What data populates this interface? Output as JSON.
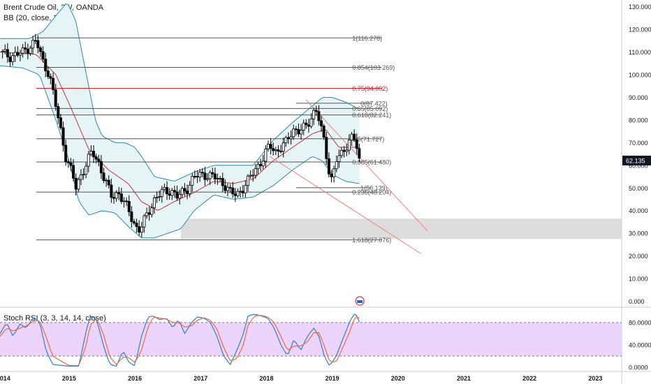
{
  "header": {
    "title": "Brent Crude Oil, 2W, OANDA",
    "indicator": "BB (20, close, 2)",
    "rsi_label": "Stoch RSI (3, 3, 14, 14, close)"
  },
  "colors": {
    "up": "#000000",
    "down": "#000000",
    "basis": "#c0343a",
    "band": "#2a8ba6",
    "band_fill": "#e6f4f5",
    "fib_line": "#555555",
    "fib_75": "#e31b23",
    "trend": "#f08080",
    "zone": "#d9d9d9",
    "k_line": "#2f7fd6",
    "d_line": "#f06a3e",
    "rsi_bg": "#e9ccfb",
    "price_tag": "#131722"
  },
  "chart_data": [
    {
      "type": "candlestick",
      "title": "Brent Crude Oil, 2W, OANDA",
      "ylim": [
        -2,
        133
      ],
      "yticks": [
        0,
        10,
        20,
        30,
        40,
        50,
        60,
        70,
        80,
        90,
        100,
        110,
        120,
        130
      ],
      "ytick_labels": [
        "0.000",
        "10.000",
        "20.000",
        "30.000",
        "40.000",
        "50.000",
        "60.000",
        "70.000",
        "80.000",
        "90.000",
        "100.000",
        "110.000",
        "120.000",
        "130.000"
      ],
      "x_axis_labels": [
        {
          "label": "2014",
          "t": 2014.0
        },
        {
          "label": "2015",
          "t": 2015.0
        },
        {
          "label": "2016",
          "t": 2016.0
        },
        {
          "label": "2017",
          "t": 2017.0
        },
        {
          "label": "2018",
          "t": 2018.0
        },
        {
          "label": "2019",
          "t": 2019.0
        },
        {
          "label": "2020",
          "t": 2020.0
        },
        {
          "label": "2021",
          "t": 2021.0
        },
        {
          "label": "2022",
          "t": 2022.0
        },
        {
          "label": "2023",
          "t": 2023.0
        }
      ],
      "xlim": [
        2013.95,
        2023.4
      ],
      "last_price": "62.135",
      "close_anchors": [
        [
          2013.95,
          110
        ],
        [
          2014.1,
          108
        ],
        [
          2014.3,
          110
        ],
        [
          2014.5,
          115
        ],
        [
          2014.6,
          106
        ],
        [
          2014.7,
          100
        ],
        [
          2014.8,
          86
        ],
        [
          2014.95,
          64
        ],
        [
          2015.05,
          56
        ],
        [
          2015.1,
          50
        ],
        [
          2015.2,
          57
        ],
        [
          2015.35,
          66
        ],
        [
          2015.45,
          61
        ],
        [
          2015.55,
          53
        ],
        [
          2015.65,
          46
        ],
        [
          2015.75,
          48
        ],
        [
          2015.85,
          43
        ],
        [
          2015.95,
          37
        ],
        [
          2016.05,
          31
        ],
        [
          2016.1,
          33
        ],
        [
          2016.2,
          39
        ],
        [
          2016.3,
          45
        ],
        [
          2016.4,
          48
        ],
        [
          2016.55,
          49
        ],
        [
          2016.65,
          46
        ],
        [
          2016.8,
          50
        ],
        [
          2016.9,
          55
        ],
        [
          2017.05,
          56
        ],
        [
          2017.2,
          55
        ],
        [
          2017.35,
          52
        ],
        [
          2017.45,
          48
        ],
        [
          2017.55,
          47
        ],
        [
          2017.7,
          52
        ],
        [
          2017.8,
          57
        ],
        [
          2017.95,
          63
        ],
        [
          2018.05,
          69
        ],
        [
          2018.15,
          66
        ],
        [
          2018.3,
          70
        ],
        [
          2018.4,
          76
        ],
        [
          2018.5,
          75
        ],
        [
          2018.6,
          77
        ],
        [
          2018.75,
          85
        ],
        [
          2018.8,
          80
        ],
        [
          2018.88,
          70
        ],
        [
          2018.95,
          58
        ],
        [
          2019.0,
          53
        ],
        [
          2019.05,
          62
        ],
        [
          2019.15,
          65
        ],
        [
          2019.25,
          71
        ],
        [
          2019.32,
          73
        ],
        [
          2019.38,
          67
        ],
        [
          2019.42,
          62.135
        ]
      ],
      "basis_anchors": [
        [
          2013.95,
          110
        ],
        [
          2014.5,
          109
        ],
        [
          2014.8,
          100
        ],
        [
          2015.05,
          84
        ],
        [
          2015.3,
          67
        ],
        [
          2015.6,
          58
        ],
        [
          2015.9,
          52
        ],
        [
          2016.1,
          44
        ],
        [
          2016.35,
          40
        ],
        [
          2016.6,
          44
        ],
        [
          2016.9,
          48
        ],
        [
          2017.2,
          53
        ],
        [
          2017.5,
          52
        ],
        [
          2017.8,
          54
        ],
        [
          2018.1,
          62
        ],
        [
          2018.4,
          68
        ],
        [
          2018.7,
          74
        ],
        [
          2018.9,
          76
        ],
        [
          2019.1,
          68
        ],
        [
          2019.35,
          68
        ]
      ],
      "upper_anchors": [
        [
          2013.95,
          116
        ],
        [
          2014.4,
          116
        ],
        [
          2014.6,
          119
        ],
        [
          2014.8,
          126
        ],
        [
          2014.97,
          132
        ],
        [
          2015.1,
          124
        ],
        [
          2015.25,
          102
        ],
        [
          2015.4,
          80
        ],
        [
          2015.5,
          73
        ],
        [
          2015.7,
          70
        ],
        [
          2015.85,
          70
        ],
        [
          2016.0,
          68
        ],
        [
          2016.1,
          64
        ],
        [
          2016.3,
          55
        ],
        [
          2016.6,
          53
        ],
        [
          2016.9,
          57
        ],
        [
          2017.2,
          60
        ],
        [
          2017.5,
          60
        ],
        [
          2017.8,
          60
        ],
        [
          2018.1,
          71
        ],
        [
          2018.4,
          79
        ],
        [
          2018.65,
          85
        ],
        [
          2018.85,
          90
        ],
        [
          2019.0,
          90
        ],
        [
          2019.2,
          88
        ],
        [
          2019.4,
          85
        ]
      ],
      "lower_anchors": [
        [
          2013.95,
          104
        ],
        [
          2014.3,
          103
        ],
        [
          2014.55,
          100
        ],
        [
          2014.8,
          80
        ],
        [
          2015.0,
          62
        ],
        [
          2015.15,
          44
        ],
        [
          2015.3,
          38
        ],
        [
          2015.5,
          40
        ],
        [
          2015.7,
          39
        ],
        [
          2015.9,
          33
        ],
        [
          2016.1,
          28
        ],
        [
          2016.3,
          28
        ],
        [
          2016.5,
          30
        ],
        [
          2016.7,
          32
        ],
        [
          2016.9,
          40
        ],
        [
          2017.2,
          47
        ],
        [
          2017.5,
          45
        ],
        [
          2017.8,
          46
        ],
        [
          2018.1,
          51
        ],
        [
          2018.4,
          58
        ],
        [
          2018.7,
          64
        ],
        [
          2018.85,
          62
        ],
        [
          2019.0,
          56
        ],
        [
          2019.2,
          53
        ],
        [
          2019.4,
          52
        ]
      ],
      "fib_levels": [
        {
          "ratio_label": "1(116.278)",
          "price": 116.278,
          "from": 2014.5,
          "to": 2019.75,
          "style": "normal"
        },
        {
          "ratio_label": "0.854(103.269)",
          "price": 103.269,
          "from": 2014.5,
          "to": 2019.75,
          "style": "normal"
        },
        {
          "ratio_label": "0.75(94.002)",
          "price": 94.002,
          "from": 2014.5,
          "to": 2019.75,
          "style": "red"
        },
        {
          "ratio_label": "0.65(85.092)",
          "price": 85.092,
          "from": 2014.5,
          "to": 2019.75,
          "style": "normal"
        },
        {
          "ratio_label": "0.618(82.241)",
          "price": 82.241,
          "from": 2014.5,
          "to": 2019.75,
          "style": "normal"
        },
        {
          "ratio_label": "0.5(71.727)",
          "price": 71.727,
          "from": 2014.5,
          "to": 2019.75,
          "style": "normal"
        },
        {
          "ratio_label": "0.385(61.480)",
          "price": 61.48,
          "from": 2014.5,
          "to": 2019.75,
          "style": "normal"
        },
        {
          "ratio_label": "0.236(48.204)",
          "price": 48.204,
          "from": 2014.5,
          "to": 2019.75,
          "style": "normal"
        },
        {
          "ratio_label": "1.618(27.076)",
          "price": 27.076,
          "from": 2014.5,
          "to": 2019.75,
          "style": "normal"
        },
        {
          "ratio_label": "0(87.422)",
          "price": 87.422,
          "from": 2018.45,
          "to": 2019.6,
          "style": "normal"
        },
        {
          "ratio_label": "1(50.139)",
          "price": 50.139,
          "from": 2018.45,
          "to": 2019.6,
          "style": "normal"
        }
      ],
      "trend_lines": [
        [
          [
            2018.6,
            89
          ],
          [
            2020.45,
            31
          ]
        ],
        [
          [
            2018.05,
            64
          ],
          [
            2020.35,
            21
          ]
        ]
      ],
      "zone": {
        "price_top": 36.5,
        "price_bottom": 27.5,
        "from": 2016.7,
        "to": 2023.4
      }
    },
    {
      "type": "line",
      "title": "Stoch RSI (3, 3, 14, 14, close)",
      "ylim": [
        -5,
        105
      ],
      "yticks": [
        0,
        40,
        80
      ],
      "ytick_labels": [
        "0.0000",
        "40.0000",
        "80.0000"
      ],
      "band": [
        20,
        80
      ],
      "series": [
        {
          "name": "K",
          "anchors": [
            [
              2013.95,
              60
            ],
            [
              2014.05,
              80
            ],
            [
              2014.15,
              55
            ],
            [
              2014.25,
              78
            ],
            [
              2014.35,
              70
            ],
            [
              2014.45,
              88
            ],
            [
              2014.55,
              82
            ],
            [
              2014.65,
              30
            ],
            [
              2014.75,
              5
            ],
            [
              2015.0,
              2
            ],
            [
              2015.15,
              2
            ],
            [
              2015.25,
              60
            ],
            [
              2015.32,
              92
            ],
            [
              2015.42,
              85
            ],
            [
              2015.52,
              40
            ],
            [
              2015.62,
              5
            ],
            [
              2015.72,
              2
            ],
            [
              2015.82,
              30
            ],
            [
              2015.9,
              10
            ],
            [
              2016.0,
              2
            ],
            [
              2016.1,
              55
            ],
            [
              2016.2,
              90
            ],
            [
              2016.28,
              92
            ],
            [
              2016.38,
              85
            ],
            [
              2016.48,
              88
            ],
            [
              2016.58,
              70
            ],
            [
              2016.66,
              86
            ],
            [
              2016.76,
              60
            ],
            [
              2016.86,
              80
            ],
            [
              2016.95,
              90
            ],
            [
              2017.05,
              88
            ],
            [
              2017.15,
              80
            ],
            [
              2017.25,
              55
            ],
            [
              2017.35,
              20
            ],
            [
              2017.45,
              5
            ],
            [
              2017.55,
              30
            ],
            [
              2017.65,
              60
            ],
            [
              2017.72,
              92
            ],
            [
              2017.82,
              95
            ],
            [
              2017.92,
              92
            ],
            [
              2018.02,
              88
            ],
            [
              2018.12,
              70
            ],
            [
              2018.22,
              40
            ],
            [
              2018.32,
              20
            ],
            [
              2018.42,
              50
            ],
            [
              2018.52,
              30
            ],
            [
              2018.62,
              55
            ],
            [
              2018.72,
              70
            ],
            [
              2018.8,
              55
            ],
            [
              2018.88,
              20
            ],
            [
              2018.96,
              2
            ],
            [
              2019.06,
              20
            ],
            [
              2019.16,
              50
            ],
            [
              2019.26,
              80
            ],
            [
              2019.33,
              95
            ],
            [
              2019.38,
              92
            ],
            [
              2019.42,
              78
            ]
          ]
        },
        {
          "name": "D",
          "anchors": [
            [
              2013.95,
              55
            ],
            [
              2014.05,
              70
            ],
            [
              2014.15,
              65
            ],
            [
              2014.25,
              70
            ],
            [
              2014.35,
              74
            ],
            [
              2014.45,
              82
            ],
            [
              2014.55,
              84
            ],
            [
              2014.65,
              55
            ],
            [
              2014.75,
              20
            ],
            [
              2015.0,
              3
            ],
            [
              2015.15,
              3
            ],
            [
              2015.25,
              35
            ],
            [
              2015.32,
              75
            ],
            [
              2015.42,
              88
            ],
            [
              2015.52,
              60
            ],
            [
              2015.62,
              18
            ],
            [
              2015.72,
              5
            ],
            [
              2015.82,
              18
            ],
            [
              2015.9,
              18
            ],
            [
              2016.0,
              8
            ],
            [
              2016.1,
              30
            ],
            [
              2016.2,
              72
            ],
            [
              2016.28,
              90
            ],
            [
              2016.38,
              88
            ],
            [
              2016.48,
              86
            ],
            [
              2016.58,
              80
            ],
            [
              2016.66,
              80
            ],
            [
              2016.76,
              72
            ],
            [
              2016.86,
              74
            ],
            [
              2016.95,
              84
            ],
            [
              2017.05,
              89
            ],
            [
              2017.15,
              84
            ],
            [
              2017.25,
              68
            ],
            [
              2017.35,
              35
            ],
            [
              2017.45,
              12
            ],
            [
              2017.55,
              15
            ],
            [
              2017.65,
              40
            ],
            [
              2017.72,
              75
            ],
            [
              2017.82,
              92
            ],
            [
              2017.92,
              93
            ],
            [
              2018.02,
              90
            ],
            [
              2018.12,
              80
            ],
            [
              2018.22,
              55
            ],
            [
              2018.32,
              30
            ],
            [
              2018.42,
              38
            ],
            [
              2018.52,
              38
            ],
            [
              2018.62,
              45
            ],
            [
              2018.72,
              62
            ],
            [
              2018.8,
              62
            ],
            [
              2018.88,
              38
            ],
            [
              2018.96,
              10
            ],
            [
              2019.06,
              10
            ],
            [
              2019.16,
              35
            ],
            [
              2019.26,
              62
            ],
            [
              2019.33,
              85
            ],
            [
              2019.38,
              92
            ],
            [
              2019.42,
              86
            ]
          ]
        }
      ]
    }
  ]
}
